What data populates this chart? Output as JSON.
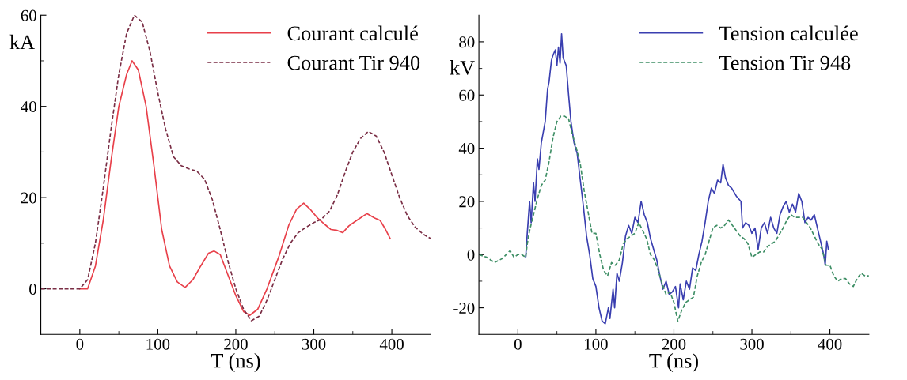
{
  "chart_data": [
    {
      "type": "line",
      "xlabel": "T (ns)",
      "ylabel": "kA",
      "xlim": [
        -50,
        450
      ],
      "ylim": [
        -10,
        60
      ],
      "xticks": [
        0,
        {
          "value": 50,
          "label": null
        },
        100,
        {
          "value": 150,
          "label": null
        },
        200,
        {
          "value": 250,
          "label": null
        },
        300,
        {
          "value": 350,
          "label": null
        },
        400
      ],
      "yticks": [
        0,
        {
          "value": 10,
          "label": null
        },
        20,
        {
          "value": 30,
          "label": null
        },
        40,
        {
          "value": 50,
          "label": null
        },
        60
      ],
      "legend": "top right",
      "grid": false,
      "series": [
        {
          "name": "Courant calculé",
          "color": "#e8404a",
          "line_style": "solid",
          "x": [
            0,
            10,
            20,
            30,
            40,
            50,
            60,
            67,
            75,
            85,
            95,
            105,
            115,
            125,
            135,
            145,
            155,
            165,
            172,
            180,
            190,
            200,
            210,
            218,
            228,
            240,
            255,
            268,
            278,
            287,
            295,
            305,
            315,
            322,
            330,
            337,
            345,
            355,
            368,
            378,
            385,
            392,
            398
          ],
          "values": [
            0,
            0,
            5,
            15,
            28,
            40,
            47,
            50,
            48,
            40,
            27,
            13,
            5,
            1.5,
            0.3,
            2,
            5,
            7.8,
            8.3,
            7.5,
            3,
            -1.5,
            -5,
            -5.8,
            -4.5,
            0,
            7,
            14,
            17.5,
            18.8,
            17.5,
            15.5,
            14,
            13,
            12.8,
            12.3,
            13.8,
            15,
            16.5,
            15.5,
            15,
            13,
            11
          ]
        },
        {
          "name": "Courant Tir 940",
          "color": "#7a2e45",
          "line_style": "dashed",
          "x": [
            -50,
            0,
            10,
            20,
            30,
            40,
            50,
            60,
            70,
            80,
            90,
            100,
            110,
            120,
            130,
            140,
            150,
            160,
            170,
            180,
            190,
            200,
            210,
            220,
            230,
            240,
            250,
            260,
            270,
            280,
            290,
            300,
            310,
            320,
            330,
            340,
            350,
            360,
            370,
            380,
            390,
            400,
            410,
            420,
            430,
            440,
            450
          ],
          "values": [
            0,
            0,
            2,
            10,
            22,
            35,
            47,
            56,
            60,
            58.5,
            52,
            43,
            35,
            29,
            27,
            26.3,
            25.8,
            24,
            19.5,
            13,
            6,
            0,
            -4.5,
            -7,
            -6,
            -2.5,
            2,
            6.5,
            10,
            12.3,
            13.5,
            14.5,
            15.3,
            17,
            20.5,
            25.5,
            30,
            33,
            34.5,
            33.5,
            30,
            25,
            20,
            16,
            13.5,
            12,
            11
          ]
        }
      ]
    },
    {
      "type": "line",
      "xlabel": "T (ns)",
      "ylabel": "kV",
      "xlim": [
        -50,
        450
      ],
      "ylim": [
        -30,
        90
      ],
      "xticks": [
        0,
        {
          "value": 50,
          "label": null
        },
        100,
        {
          "value": 150,
          "label": null
        },
        200,
        {
          "value": 250,
          "label": null
        },
        300,
        {
          "value": 350,
          "label": null
        },
        400
      ],
      "yticks": [
        -20,
        {
          "value": -10,
          "label": null
        },
        0,
        {
          "value": 10,
          "label": null
        },
        20,
        {
          "value": 30,
          "label": null
        },
        40,
        {
          "value": 50,
          "label": null
        },
        60,
        {
          "value": 70,
          "label": null
        },
        80
      ],
      "legend": "top right",
      "grid": false,
      "series": [
        {
          "name": "Tension calculée",
          "color": "#3a3fb0",
          "line_style": "solid",
          "x": [
            10,
            12,
            15,
            17,
            20,
            22,
            25,
            27,
            30,
            35,
            38,
            40,
            43,
            45,
            48,
            50,
            52,
            54,
            56,
            58,
            62,
            65,
            68,
            72,
            76,
            80,
            84,
            88,
            92,
            96,
            100,
            104,
            108,
            112,
            116,
            118,
            122,
            124,
            127,
            130,
            134,
            138,
            142,
            146,
            150,
            154,
            158,
            162,
            166,
            170,
            174,
            178,
            182,
            186,
            190,
            194,
            198,
            202,
            206,
            208,
            212,
            216,
            220,
            224,
            228,
            232,
            236,
            240,
            244,
            248,
            252,
            256,
            260,
            263,
            266,
            270,
            274,
            280,
            286,
            288,
            292,
            296,
            300,
            304,
            308,
            312,
            316,
            320,
            324,
            328,
            332,
            336,
            340,
            344,
            348,
            352,
            356,
            360,
            364,
            368,
            372,
            376,
            380,
            384,
            388,
            392,
            394,
            396,
            398
          ],
          "values": [
            -1,
            8,
            20,
            12,
            27,
            20,
            36,
            32,
            42,
            50,
            62,
            65,
            73,
            75,
            77,
            71,
            78,
            72,
            83,
            74,
            71,
            60,
            50,
            42,
            38,
            28,
            18,
            7,
            0,
            -9,
            -12,
            -20,
            -25,
            -26,
            -20,
            -24,
            -13,
            -20,
            -7,
            -10,
            -3,
            7,
            11,
            8,
            14,
            12,
            20,
            15,
            12,
            6,
            2,
            -2,
            -8,
            -13,
            -10,
            -15,
            -14,
            -12,
            -20,
            -11,
            -17,
            -10,
            -13,
            -5,
            -6,
            0,
            5,
            12,
            20,
            25,
            23,
            28,
            27,
            34,
            29,
            26,
            25,
            22,
            20,
            10,
            12,
            11,
            8,
            10,
            2,
            10,
            12,
            8,
            14,
            10,
            8,
            15,
            18,
            20,
            16,
            19,
            16,
            23,
            20,
            12,
            14,
            13,
            15,
            10,
            5,
            0,
            -4,
            5,
            2
          ]
        },
        {
          "name": "Tension Tir 948",
          "color": "#3f8f66",
          "line_style": "dashed",
          "x": [
            -50,
            -40,
            -30,
            -20,
            -10,
            -5,
            0,
            5,
            10,
            12,
            15,
            20,
            25,
            30,
            35,
            40,
            45,
            50,
            55,
            60,
            65,
            70,
            75,
            80,
            85,
            90,
            95,
            100,
            105,
            110,
            115,
            120,
            125,
            130,
            135,
            140,
            145,
            150,
            155,
            160,
            165,
            170,
            175,
            180,
            185,
            190,
            195,
            200,
            205,
            210,
            215,
            220,
            225,
            230,
            235,
            240,
            245,
            250,
            255,
            260,
            265,
            270,
            275,
            280,
            285,
            290,
            295,
            300,
            305,
            310,
            315,
            320,
            325,
            330,
            340,
            345,
            350,
            355,
            360,
            365,
            370,
            375,
            380,
            385,
            390,
            395,
            400,
            405,
            410,
            415,
            420,
            425,
            430,
            435,
            440,
            445,
            450
          ],
          "values": [
            0,
            -1,
            -3,
            -1.5,
            1.5,
            -1,
            0,
            0,
            -1,
            4,
            9,
            15,
            21,
            26,
            28,
            35,
            44,
            50,
            52,
            52,
            51,
            45,
            40,
            34,
            24,
            16,
            8,
            8,
            0,
            -6,
            -8,
            -3,
            -4,
            -2,
            4,
            6,
            7,
            8,
            12,
            9,
            6,
            0,
            -2,
            -6,
            -11,
            -15,
            -14,
            -18,
            -25,
            -21,
            -18,
            -17,
            -16,
            -8,
            -3,
            0,
            5,
            10,
            11,
            10,
            11,
            13,
            11,
            9,
            7,
            6,
            4,
            -1,
            0,
            1,
            1,
            3,
            4,
            5,
            10,
            13,
            15,
            14,
            14,
            14,
            12,
            10,
            7,
            4,
            2,
            -4,
            -4,
            -8,
            -10,
            -9,
            -9,
            -11,
            -12,
            -9,
            -7,
            -8,
            -8
          ]
        }
      ]
    }
  ]
}
